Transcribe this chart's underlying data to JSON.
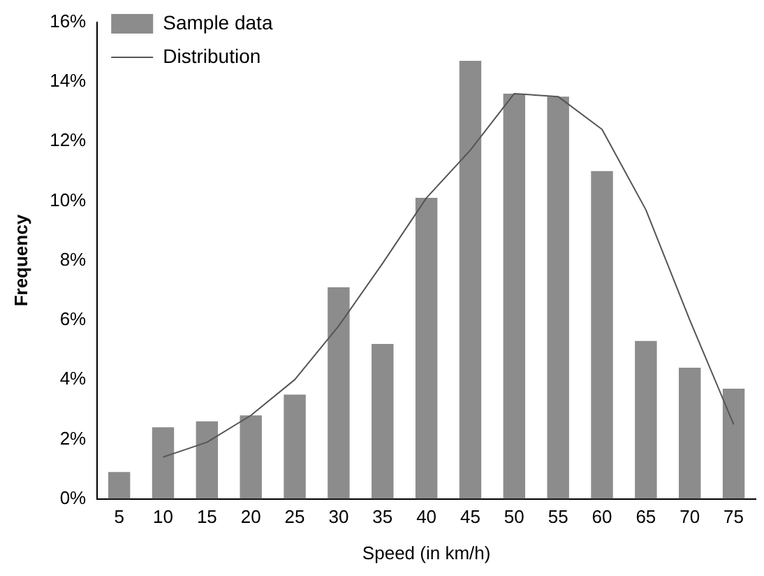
{
  "chart_data": {
    "type": "bar",
    "xlabel": "Speed (in km/h)",
    "ylabel": "Frequency",
    "categories": [
      "5",
      "10",
      "15",
      "20",
      "25",
      "30",
      "35",
      "40",
      "45",
      "50",
      "55",
      "60",
      "65",
      "70",
      "75"
    ],
    "series": [
      {
        "name": "Sample data",
        "color": "#8c8c8c",
        "values": [
          0.9,
          2.4,
          2.6,
          2.8,
          3.5,
          7.1,
          5.2,
          10.1,
          14.7,
          13.6,
          13.5,
          11.0,
          5.3,
          4.4,
          3.7
        ]
      },
      {
        "name": "Distribution",
        "type": "line",
        "color": "#555555",
        "values": [
          null,
          1.4,
          1.9,
          2.8,
          4.0,
          5.8,
          7.9,
          10.1,
          11.7,
          13.6,
          13.5,
          12.4,
          9.7,
          6.0,
          2.5
        ]
      }
    ],
    "ylim": [
      0,
      16
    ],
    "yticks": [
      {
        "value": 0,
        "label": "0%"
      },
      {
        "value": 2,
        "label": "2%"
      },
      {
        "value": 4,
        "label": "4%"
      },
      {
        "value": 6,
        "label": "6%"
      },
      {
        "value": 8,
        "label": "8%"
      },
      {
        "value": 10,
        "label": "10%"
      },
      {
        "value": 12,
        "label": "12%"
      },
      {
        "value": 14,
        "label": "14%"
      },
      {
        "value": 16,
        "label": "16%"
      }
    ],
    "grid": false,
    "legend": "top left",
    "marker": "none"
  }
}
